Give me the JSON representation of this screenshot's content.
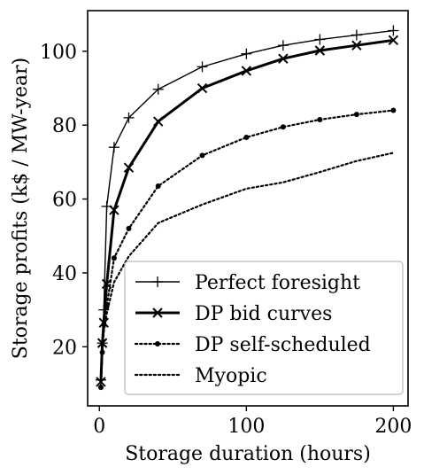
{
  "chart_data": {
    "type": "line",
    "xlabel": "Storage duration (hours)",
    "ylabel": "Storage profits (k$ / MW-year)",
    "xlim": [
      -8,
      210
    ],
    "ylim": [
      4,
      111
    ],
    "xticks": [
      0,
      100,
      200
    ],
    "yticks": [
      20,
      40,
      60,
      80,
      100
    ],
    "grid": false,
    "legend_position": "lower-right",
    "colors": {
      "line": "#000000",
      "background": "#ffffff"
    },
    "series": [
      {
        "name": "Perfect foresight",
        "style": "solid",
        "marker": "plus",
        "x": [
          1,
          2,
          3,
          5,
          10,
          20,
          40,
          70,
          100,
          125,
          150,
          175,
          200
        ],
        "y": [
          11,
          21,
          30,
          58,
          74,
          82,
          89.7,
          95.8,
          99.3,
          101.6,
          103.2,
          104.4,
          105.6
        ]
      },
      {
        "name": "DP bid curves",
        "style": "solid-bold",
        "marker": "x",
        "x": [
          1,
          2,
          3,
          5,
          10,
          20,
          40,
          70,
          100,
          125,
          150,
          175,
          200
        ],
        "y": [
          10.5,
          21,
          26.5,
          37,
          57,
          68.5,
          81,
          90,
          94.7,
          98,
          100.2,
          101.6,
          103
        ]
      },
      {
        "name": "DP self-scheduled",
        "style": "dotted",
        "marker": "dot",
        "x": [
          1,
          2,
          3,
          5,
          10,
          20,
          40,
          70,
          100,
          125,
          150,
          175,
          200
        ],
        "y": [
          9,
          18.5,
          26,
          31,
          44,
          52,
          63.5,
          71.8,
          76.7,
          79.5,
          81.5,
          82.9,
          84
        ]
      },
      {
        "name": "Myopic",
        "style": "dotted",
        "marker": "none",
        "x": [
          1,
          2,
          3,
          5,
          10,
          20,
          40,
          70,
          100,
          125,
          150,
          175,
          200
        ],
        "y": [
          9,
          18,
          24,
          29,
          37.5,
          44.5,
          53.5,
          58.5,
          62.8,
          64.5,
          67.3,
          70.3,
          72.5
        ]
      }
    ]
  }
}
